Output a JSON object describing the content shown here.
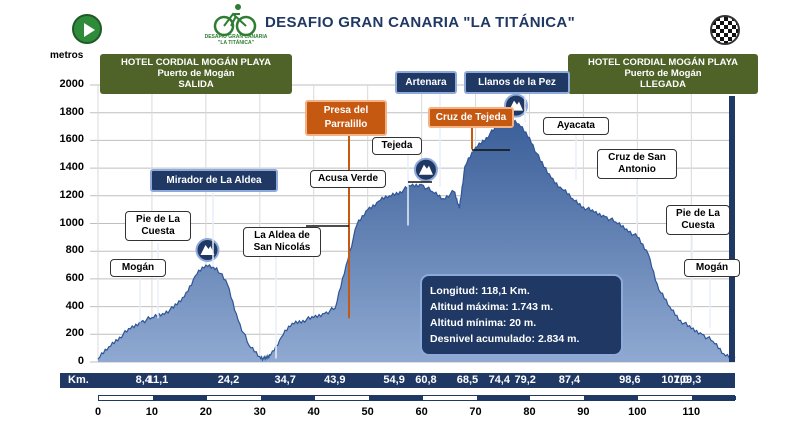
{
  "title": "DESAFIO GRAN CANARIA \"LA TITÁNICA\"",
  "logo_text": [
    "DESAFIO GRAN CANARIA",
    "\"LA TITÁNICA\""
  ],
  "icons": {
    "start": "play-icon",
    "finish": "checkered-flag-icon",
    "summit": "mountain-icon"
  },
  "colors": {
    "profile": "#4a6fa5",
    "navy": "#1f3864",
    "olive": "#4f6228",
    "orange": "#c65911"
  },
  "start_box": {
    "line1": "HOTEL CORDIAL MOGÁN PLAYA",
    "line2": "Puerto de Mogán",
    "line3": "SALIDA"
  },
  "finish_box": {
    "line1": "HOTEL CORDIAL MOGÁN PLAYA",
    "line2": "Puerto de Mogán",
    "line3": "LLEGADA"
  },
  "waypoints_blue": [
    "Mirador de La Aldea",
    "Artenara",
    "Llanos de la Pez"
  ],
  "waypoints_orange": [
    "Presa del Parralillo",
    "Cruz de Tejeda"
  ],
  "waypoints_white": [
    "Mogán",
    "Pie de La Cuesta",
    "La Aldea de San Nicolás",
    "Acusa Verde",
    "Tejeda",
    "Ayacata",
    "Cruz de San Antonio",
    "Pie de La Cuesta",
    "Mogán"
  ],
  "stats": {
    "length": "Longitud: 118,1 Km.",
    "max_alt": "Altitud máxima: 1.743 m.",
    "min_alt": "Altitud mínima: 20 m.",
    "gain": "Desnivel  acumulado: 2.834 m."
  },
  "km_label": "Km.",
  "km_marks": [
    "8,4",
    "11,1",
    "24,2",
    "34,7",
    "43,9",
    "54,9",
    "60,8",
    "68,5",
    "74,4",
    "79,2",
    "87,4",
    "98,6",
    "107,0",
    "109,3"
  ],
  "chart_data": {
    "type": "area",
    "ylabel": "metros",
    "ylim": [
      0,
      2000
    ],
    "yticks": [
      0,
      200,
      400,
      600,
      800,
      1000,
      1200,
      1400,
      1600,
      1800,
      2000
    ],
    "xlim": [
      0,
      118.1
    ],
    "xticks": [
      0,
      10,
      20,
      30,
      40,
      50,
      60,
      70,
      80,
      90,
      100,
      110
    ],
    "grid": true,
    "x": [
      0,
      2,
      4,
      6,
      8,
      10,
      12,
      14,
      16,
      18,
      20,
      22,
      24,
      26,
      28,
      30,
      31,
      32,
      34,
      36,
      38,
      40,
      42,
      44,
      46,
      48,
      50,
      52,
      54,
      56,
      58,
      60,
      62,
      64,
      66,
      67,
      68,
      70,
      72,
      74,
      76,
      78,
      80,
      82,
      84,
      86,
      88,
      90,
      92,
      94,
      96,
      98,
      100,
      102,
      104,
      106,
      108,
      110,
      112,
      114,
      116,
      118.1
    ],
    "y": [
      20,
      110,
      180,
      240,
      290,
      320,
      350,
      390,
      470,
      620,
      700,
      680,
      560,
      300,
      120,
      40,
      20,
      50,
      180,
      280,
      300,
      320,
      350,
      390,
      700,
      990,
      1100,
      1160,
      1200,
      1230,
      1270,
      1280,
      1230,
      1180,
      1230,
      1110,
      1410,
      1550,
      1620,
      1700,
      1743,
      1720,
      1620,
      1450,
      1330,
      1250,
      1180,
      1120,
      1080,
      1050,
      1010,
      960,
      900,
      780,
      520,
      400,
      300,
      240,
      200,
      150,
      60,
      30
    ],
    "summit_markers": [
      {
        "label": "Mirador de La Aldea",
        "x": 20.3,
        "elevation": 700
      },
      {
        "label": "Artenara",
        "x": 60.8,
        "elevation": 1280
      },
      {
        "label": "Llanos de la Pez",
        "x": 77.5,
        "elevation": 1743
      }
    ]
  }
}
